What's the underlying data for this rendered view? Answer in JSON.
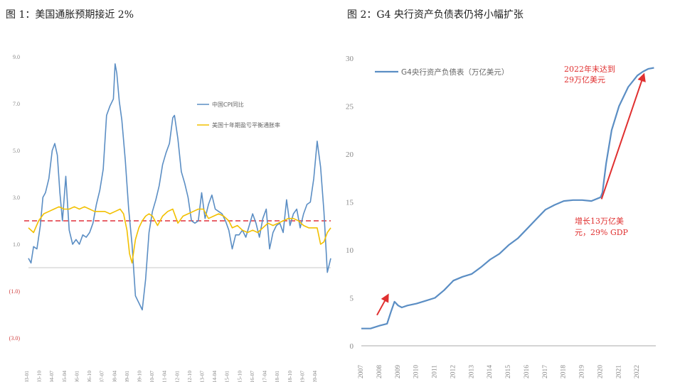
{
  "figures": {
    "fig1_title": "图 1：美国通胀预期接近 2%",
    "fig2_title": "图 2：G4 央行资产负债表仍将小幅扩张"
  },
  "colors": {
    "blue": "#5b8ec4",
    "yellow": "#f2c000",
    "red_dash": "#e0303a",
    "red_arrow": "#e03030",
    "annotation": "#e03030",
    "zero_line": "#c8c8c8",
    "axis_text": "#888888"
  },
  "chart_data": [
    {
      "type": "line",
      "title": "图 1：美国通胀预期接近 2%",
      "ylim": [
        -3,
        9
      ],
      "y_ticks": [
        {
          "value": 9,
          "label": "9.0"
        },
        {
          "value": 7,
          "label": "7.0"
        },
        {
          "value": 5,
          "label": "5.0"
        },
        {
          "value": 3,
          "label": "3.0"
        },
        {
          "value": 1,
          "label": "1.0"
        },
        {
          "value": -1,
          "label": "(1.0)"
        },
        {
          "value": -3,
          "label": "(3.0)"
        }
      ],
      "x_tick_labels": [
        "2003-01",
        "2003-10",
        "2004-07",
        "2005-04",
        "2006-01",
        "2006-10",
        "2007-07",
        "2008-04",
        "2009-01",
        "2009-10",
        "2010-07",
        "2011-04",
        "2012-01",
        "2012-10",
        "2013-07",
        "2014-04",
        "2015-01",
        "2015-10",
        "2016-07",
        "2017-04",
        "2018-01",
        "2018-10",
        "2019-07",
        "2020-04"
      ],
      "reference_line": {
        "value": 2.0,
        "style": "dashed"
      },
      "zero_line": {
        "value": 0
      },
      "legend_position": "top-right",
      "series": [
        {
          "name": "中国CPI同比",
          "x": [
            2003.0,
            2003.15,
            2003.3,
            2003.5,
            2003.7,
            2003.85,
            2004.0,
            2004.2,
            2004.4,
            2004.55,
            2004.7,
            2004.85,
            2005.0,
            2005.2,
            2005.4,
            2005.6,
            2005.8,
            2006.0,
            2006.2,
            2006.4,
            2006.6,
            2006.8,
            2007.0,
            2007.2,
            2007.4,
            2007.6,
            2007.8,
            2008.0,
            2008.1,
            2008.2,
            2008.35,
            2008.5,
            2008.7,
            2008.9,
            2009.1,
            2009.3,
            2009.5,
            2009.7,
            2009.9,
            2010.1,
            2010.3,
            2010.5,
            2010.7,
            2010.9,
            2011.1,
            2011.3,
            2011.5,
            2011.6,
            2011.8,
            2012.0,
            2012.2,
            2012.4,
            2012.6,
            2012.8,
            2013.0,
            2013.2,
            2013.4,
            2013.6,
            2013.8,
            2014.0,
            2014.2,
            2014.4,
            2014.6,
            2014.8,
            2015.0,
            2015.2,
            2015.4,
            2015.6,
            2015.8,
            2016.0,
            2016.2,
            2016.4,
            2016.6,
            2016.8,
            2017.0,
            2017.2,
            2017.4,
            2017.6,
            2017.8,
            2018.0,
            2018.2,
            2018.4,
            2018.6,
            2018.8,
            2019.0,
            2019.2,
            2019.4,
            2019.6,
            2019.8,
            2020.0,
            2020.2,
            2020.4,
            2020.6,
            2020.8
          ],
          "values": [
            0.4,
            0.2,
            0.9,
            0.8,
            1.8,
            3.0,
            3.2,
            3.8,
            5.0,
            5.3,
            4.8,
            3.2,
            2.0,
            3.9,
            1.6,
            1.0,
            1.2,
            1.0,
            1.4,
            1.3,
            1.5,
            1.9,
            2.7,
            3.3,
            4.2,
            6.5,
            6.9,
            7.2,
            8.7,
            8.3,
            7.1,
            6.3,
            4.6,
            2.5,
            1.0,
            -1.2,
            -1.5,
            -1.8,
            -0.5,
            1.5,
            2.4,
            2.9,
            3.5,
            4.4,
            4.9,
            5.3,
            6.4,
            6.5,
            5.5,
            4.1,
            3.6,
            3.0,
            2.0,
            1.9,
            2.0,
            3.2,
            2.1,
            2.7,
            3.1,
            2.5,
            2.4,
            2.3,
            2.0,
            1.6,
            0.8,
            1.4,
            1.4,
            1.6,
            1.3,
            1.8,
            2.3,
            1.9,
            1.3,
            2.1,
            2.5,
            0.8,
            1.5,
            1.8,
            1.9,
            1.5,
            2.9,
            1.8,
            2.3,
            2.5,
            1.7,
            2.3,
            2.7,
            2.8,
            3.8,
            5.4,
            4.3,
            2.4,
            -0.2,
            0.4
          ]
        },
        {
          "name": "美国十年期盈亏平衡通胀率",
          "x": [
            2003.0,
            2003.3,
            2003.6,
            2003.9,
            2004.2,
            2004.5,
            2004.8,
            2005.1,
            2005.4,
            2005.7,
            2006.0,
            2006.3,
            2006.6,
            2006.9,
            2007.2,
            2007.5,
            2007.8,
            2008.1,
            2008.4,
            2008.6,
            2008.8,
            2008.95,
            2009.1,
            2009.3,
            2009.5,
            2009.7,
            2009.9,
            2010.1,
            2010.3,
            2010.6,
            2010.9,
            2011.2,
            2011.5,
            2011.8,
            2012.1,
            2012.4,
            2012.7,
            2013.0,
            2013.3,
            2013.6,
            2013.9,
            2014.2,
            2014.5,
            2014.8,
            2015.0,
            2015.3,
            2015.6,
            2015.9,
            2016.2,
            2016.5,
            2016.8,
            2017.1,
            2017.4,
            2017.7,
            2018.0,
            2018.3,
            2018.6,
            2018.9,
            2019.2,
            2019.5,
            2019.8,
            2020.0,
            2020.2,
            2020.4,
            2020.6,
            2020.8
          ],
          "values": [
            1.7,
            1.5,
            2.0,
            2.3,
            2.4,
            2.5,
            2.6,
            2.5,
            2.5,
            2.6,
            2.5,
            2.6,
            2.5,
            2.4,
            2.4,
            2.4,
            2.3,
            2.4,
            2.5,
            2.3,
            1.6,
            0.6,
            0.2,
            1.2,
            1.7,
            2.0,
            2.2,
            2.3,
            2.2,
            1.8,
            2.2,
            2.4,
            2.5,
            1.9,
            2.2,
            2.3,
            2.4,
            2.5,
            2.5,
            2.1,
            2.2,
            2.3,
            2.2,
            2.0,
            1.7,
            1.8,
            1.6,
            1.5,
            1.6,
            1.5,
            1.7,
            1.9,
            1.8,
            1.9,
            2.0,
            2.1,
            2.1,
            2.0,
            1.8,
            1.7,
            1.7,
            1.7,
            1.0,
            1.1,
            1.5,
            1.7
          ]
        }
      ]
    },
    {
      "type": "line",
      "title": "图 2：G4 央行资产负债表仍将小幅扩张",
      "ylim": [
        0,
        30
      ],
      "y_ticks": [
        0,
        5,
        10,
        15,
        20,
        25,
        30
      ],
      "xlim": [
        2007,
        2023
      ],
      "x_tick_labels": [
        "2007",
        "2008",
        "2009",
        "2010",
        "2011",
        "2012",
        "2013",
        "2014",
        "2015",
        "2016",
        "2017",
        "2018",
        "2019",
        "2020",
        "2021",
        "2022"
      ],
      "legend_position": "top-left",
      "series": [
        {
          "name": "G4央行资产负债表（万亿美元）",
          "x": [
            2007.0,
            2007.5,
            2008.0,
            2008.4,
            2008.6,
            2008.8,
            2009.0,
            2009.2,
            2009.5,
            2010.0,
            2010.5,
            2011.0,
            2011.5,
            2012.0,
            2012.5,
            2013.0,
            2013.5,
            2014.0,
            2014.5,
            2015.0,
            2015.5,
            2016.0,
            2016.5,
            2017.0,
            2017.5,
            2018.0,
            2018.5,
            2019.0,
            2019.5,
            2020.0,
            2020.1,
            2020.3,
            2020.6,
            2021.0,
            2021.5,
            2022.0,
            2022.3,
            2022.6,
            2022.9
          ],
          "values": [
            1.8,
            1.8,
            2.1,
            2.3,
            3.5,
            4.6,
            4.2,
            4.0,
            4.2,
            4.4,
            4.7,
            5.0,
            5.8,
            6.8,
            7.2,
            7.5,
            8.2,
            9.0,
            9.6,
            10.5,
            11.2,
            12.2,
            13.2,
            14.2,
            14.7,
            15.1,
            15.2,
            15.2,
            15.1,
            15.5,
            16.0,
            19.0,
            22.5,
            25.0,
            27.0,
            28.2,
            28.6,
            28.9,
            29.0
          ]
        }
      ],
      "annotations": [
        {
          "lines": [
            "2022年末达到",
            "29万亿美元"
          ]
        },
        {
          "lines": [
            "增长13万亿美",
            "元，29% GDP"
          ]
        }
      ]
    }
  ]
}
